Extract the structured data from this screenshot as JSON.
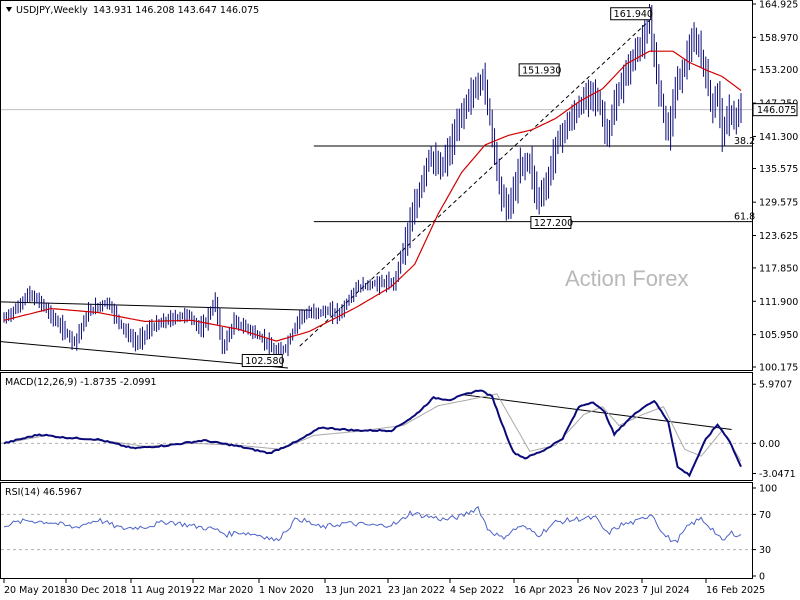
{
  "chart_data": [
    {
      "type": "bar",
      "subtype": "ohlc-weekly",
      "title": "USDJPY,Weekly",
      "ohlc_header": "143.931 146.208 143.647 146.075",
      "symbol_icon": "triangle-down-icon",
      "watermark": "Action Forex",
      "current_price_label": "146.075",
      "y_ticks": [
        "164.925",
        "158.970",
        "153.200",
        "147.250",
        "141.300",
        "135.575",
        "129.575",
        "123.625",
        "117.850",
        "111.900",
        "105.950",
        "100.175"
      ],
      "ylim": [
        100.175,
        164.925
      ],
      "x_ticks": [
        "20 May 2018",
        "30 Dec 2018",
        "11 Aug 2019",
        "22 Mar 2020",
        "1 Nov 2020",
        "13 Jun 2021",
        "23 Jan 2022",
        "4 Sep 2022",
        "16 Apr 2023",
        "26 Nov 2023",
        "7 Jul 2024",
        "16 Feb 2025"
      ],
      "annotations": [
        {
          "label": "161.940",
          "x_index": 267,
          "value": 161.94
        },
        {
          "label": "151.930",
          "x_index": 228,
          "value": 151.93
        },
        {
          "label": "127.200",
          "x_index": 233,
          "value": 127.2
        },
        {
          "label": "102.580",
          "x_index": 116,
          "value": 102.58
        }
      ],
      "fib_levels": [
        {
          "label": "38.2",
          "value": 139.6
        },
        {
          "label": "61.8",
          "value": 126.1
        }
      ],
      "current_price": 146.075,
      "colors": {
        "price": "#0a0a7a",
        "ma": "#d40000",
        "grid": "#c8c8c8",
        "fib": "#000000"
      },
      "pivots": [
        [
          0,
          108.8
        ],
        [
          6,
          110.9
        ],
        [
          10,
          113.2
        ],
        [
          16,
          111.5
        ],
        [
          22,
          108.3
        ],
        [
          30,
          104.6
        ],
        [
          36,
          110.1
        ],
        [
          44,
          111.8
        ],
        [
          50,
          107.5
        ],
        [
          56,
          104.4
        ],
        [
          63,
          107.3
        ],
        [
          70,
          108.6
        ],
        [
          78,
          109.6
        ],
        [
          84,
          106.8
        ],
        [
          90,
          111.9
        ],
        [
          93,
          103.5
        ],
        [
          98,
          108.1
        ],
        [
          104,
          107.0
        ],
        [
          110,
          105.2
        ],
        [
          116,
          102.6
        ],
        [
          120,
          103.7
        ],
        [
          126,
          109.3
        ],
        [
          132,
          109.9
        ],
        [
          138,
          110.1
        ],
        [
          143,
          109.7
        ],
        [
          150,
          114.3
        ],
        [
          156,
          114.9
        ],
        [
          162,
          115.2
        ],
        [
          166,
          115.0
        ],
        [
          170,
          121.3
        ],
        [
          176,
          130.0
        ],
        [
          181,
          137.8
        ],
        [
          186,
          135.5
        ],
        [
          190,
          139.1
        ],
        [
          194,
          144.3
        ],
        [
          198,
          148.2
        ],
        [
          202,
          150.4
        ],
        [
          204,
          151.9
        ],
        [
          207,
          144.5
        ],
        [
          211,
          132.6
        ],
        [
          214,
          128.3
        ],
        [
          217,
          131.2
        ],
        [
          220,
          136.2
        ],
        [
          224,
          136.8
        ],
        [
          227,
          130.2
        ],
        [
          231,
          132.3
        ],
        [
          235,
          139.8
        ],
        [
          240,
          143.5
        ],
        [
          245,
          146.5
        ],
        [
          250,
          149.6
        ],
        [
          254,
          146.4
        ],
        [
          257,
          141.2
        ],
        [
          260,
          146.5
        ],
        [
          264,
          151.8
        ],
        [
          268,
          155.3
        ],
        [
          272,
          158.5
        ],
        [
          275,
          161.9
        ],
        [
          278,
          152.3
        ],
        [
          281,
          145.5
        ],
        [
          283,
          141.8
        ],
        [
          286,
          149.9
        ],
        [
          290,
          154.2
        ],
        [
          293,
          158.2
        ],
        [
          296,
          157.3
        ],
        [
          299,
          152.0
        ],
        [
          302,
          145.9
        ],
        [
          304,
          149.4
        ],
        [
          306,
          141.9
        ],
        [
          309,
          145.5
        ],
        [
          312,
          144.4
        ],
        [
          314,
          146.1
        ]
      ],
      "ma_pivots": [
        [
          0,
          108.5
        ],
        [
          20,
          110.6
        ],
        [
          40,
          109.9
        ],
        [
          60,
          108.3
        ],
        [
          80,
          108.5
        ],
        [
          100,
          106.9
        ],
        [
          116,
          104.8
        ],
        [
          130,
          106.5
        ],
        [
          150,
          110.8
        ],
        [
          165,
          114.5
        ],
        [
          175,
          118.5
        ],
        [
          185,
          127.5
        ],
        [
          195,
          134.9
        ],
        [
          205,
          139.8
        ],
        [
          215,
          141.5
        ],
        [
          225,
          142.5
        ],
        [
          235,
          144.5
        ],
        [
          245,
          147.5
        ],
        [
          255,
          149.8
        ],
        [
          265,
          154.2
        ],
        [
          275,
          156.5
        ],
        [
          285,
          156.5
        ],
        [
          292,
          154.5
        ],
        [
          300,
          153.0
        ],
        [
          306,
          152.0
        ],
        [
          314,
          149.5
        ]
      ]
    },
    {
      "type": "line",
      "subtype": "macd",
      "title": "MACD(12,26,9) -1.8735 -2.0991",
      "y_ticks": [
        "5.9707",
        "0.00",
        "-3.0471"
      ],
      "ylim": [
        -3.5,
        6.8
      ],
      "series": [
        {
          "name": "MACD",
          "color": "#0a0a7a",
          "pivots": [
            [
              0,
              0.0
            ],
            [
              15,
              0.9
            ],
            [
              25,
              0.6
            ],
            [
              40,
              0.4
            ],
            [
              55,
              -0.5
            ],
            [
              70,
              -0.2
            ],
            [
              85,
              0.3
            ],
            [
              100,
              -0.3
            ],
            [
              113,
              -1.0
            ],
            [
              125,
              0.2
            ],
            [
              135,
              1.6
            ],
            [
              150,
              1.3
            ],
            [
              165,
              1.3
            ],
            [
              175,
              2.8
            ],
            [
              183,
              4.6
            ],
            [
              190,
              4.4
            ],
            [
              196,
              4.9
            ],
            [
              203,
              5.4
            ],
            [
              208,
              4.7
            ],
            [
              212,
              2.1
            ],
            [
              217,
              -0.9
            ],
            [
              222,
              -1.5
            ],
            [
              230,
              -0.7
            ],
            [
              238,
              0.5
            ],
            [
              245,
              3.7
            ],
            [
              251,
              4.2
            ],
            [
              256,
              3.1
            ],
            [
              260,
              0.9
            ],
            [
              266,
              2.4
            ],
            [
              272,
              3.6
            ],
            [
              277,
              4.3
            ],
            [
              283,
              2.2
            ],
            [
              287,
              -2.4
            ],
            [
              292,
              -3.2
            ],
            [
              299,
              0.4
            ],
            [
              304,
              1.9
            ],
            [
              309,
              0.3
            ],
            [
              314,
              -2.4
            ]
          ]
        },
        {
          "name": "Signal",
          "color": "#a9a9a9",
          "pivots": [
            [
              0,
              0.0
            ],
            [
              18,
              0.8
            ],
            [
              30,
              0.5
            ],
            [
              45,
              0.2
            ],
            [
              60,
              -0.3
            ],
            [
              80,
              0.0
            ],
            [
              100,
              -0.2
            ],
            [
              118,
              -0.6
            ],
            [
              132,
              0.8
            ],
            [
              150,
              1.2
            ],
            [
              170,
              1.8
            ],
            [
              185,
              3.8
            ],
            [
              200,
              4.5
            ],
            [
              210,
              5.0
            ],
            [
              216,
              2.5
            ],
            [
              224,
              -0.8
            ],
            [
              235,
              -0.2
            ],
            [
              247,
              2.9
            ],
            [
              255,
              3.7
            ],
            [
              262,
              1.8
            ],
            [
              272,
              2.9
            ],
            [
              281,
              3.7
            ],
            [
              290,
              -0.6
            ],
            [
              297,
              -1.3
            ],
            [
              306,
              1.3
            ],
            [
              314,
              -1.8
            ]
          ]
        }
      ],
      "trendline_pivots": [
        [
          196,
          4.9
        ],
        [
          310,
          1.4
        ]
      ]
    },
    {
      "type": "line",
      "subtype": "rsi",
      "title": "RSI(14) 46.5967",
      "y_ticks": [
        "100",
        "70",
        "30",
        "0"
      ],
      "ylim": [
        0,
        100
      ],
      "series": [
        {
          "name": "RSI",
          "color": "#4d63c8",
          "pivots": [
            [
              0,
              58
            ],
            [
              10,
              63
            ],
            [
              20,
              61
            ],
            [
              30,
              55
            ],
            [
              40,
              64
            ],
            [
              50,
              54
            ],
            [
              60,
              56
            ],
            [
              70,
              62
            ],
            [
              80,
              57
            ],
            [
              90,
              53
            ],
            [
              95,
              47
            ],
            [
              100,
              50
            ],
            [
              110,
              46
            ],
            [
              116,
              40
            ],
            [
              125,
              66
            ],
            [
              135,
              55
            ],
            [
              145,
              60
            ],
            [
              160,
              57
            ],
            [
              168,
              60
            ],
            [
              173,
              72
            ],
            [
              178,
              69
            ],
            [
              188,
              64
            ],
            [
              195,
              68
            ],
            [
              202,
              78
            ],
            [
              206,
              54
            ],
            [
              212,
              43
            ],
            [
              220,
              57
            ],
            [
              228,
              47
            ],
            [
              235,
              61
            ],
            [
              245,
              65
            ],
            [
              252,
              66
            ],
            [
              257,
              48
            ],
            [
              263,
              58
            ],
            [
              270,
              62
            ],
            [
              276,
              71
            ],
            [
              281,
              47
            ],
            [
              286,
              38
            ],
            [
              292,
              58
            ],
            [
              297,
              65
            ],
            [
              302,
              53
            ],
            [
              306,
              39
            ],
            [
              310,
              49
            ],
            [
              314,
              46
            ]
          ]
        }
      ]
    }
  ]
}
